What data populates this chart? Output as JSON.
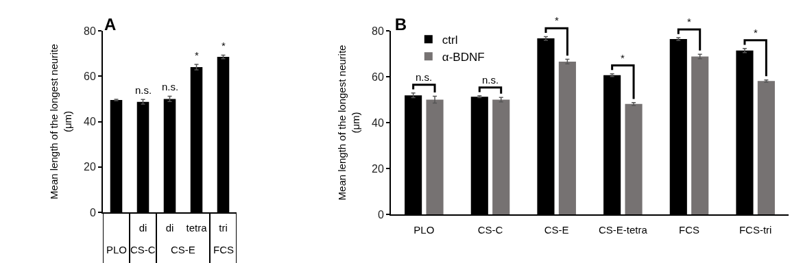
{
  "chart_data": [
    {
      "type": "bar",
      "title": "A",
      "ylabel": "Mean length of the longest neurite\n(μm)",
      "categories": [
        null,
        "di",
        "di",
        "tetra",
        "tri"
      ],
      "values": [
        49.5,
        48.7,
        50,
        64,
        68.5
      ],
      "errors": [
        0.3,
        1,
        1.2,
        1.2,
        0.8
      ],
      "color": "#000000",
      "value_labels": [
        null,
        "n.s.",
        "n.s.",
        "*",
        "*"
      ],
      "annotations": [
        "PLO",
        "CS-C",
        "CS-E",
        "FCS"
      ],
      "ylim": [
        0,
        80
      ],
      "yticks": [
        0,
        20,
        40,
        60,
        80
      ]
    },
    {
      "type": "bar",
      "title": "B",
      "ylabel": "Mean length of the longest neurite\n(μm)",
      "categories": [
        "PLO",
        "CS-C",
        "CS-E",
        "CS-E-tetra",
        "FCS",
        "FCS-tri"
      ],
      "series": [
        {
          "name": "ctrl",
          "color": "#000000",
          "values": [
            51.9,
            51.3,
            76.7,
            60.7,
            76.4,
            71.4
          ],
          "errors": [
            1,
            0.4,
            0.8,
            0.6,
            0.6,
            0.9
          ]
        },
        {
          "name": "α-BDNF",
          "color": "#767272",
          "values": [
            50,
            50,
            66.6,
            48.1,
            68.8,
            58.1
          ],
          "errors": [
            1.5,
            1,
            1,
            0.6,
            1,
            0.5
          ]
        }
      ],
      "legend": "top left",
      "annotations": [
        "n.s.",
        "n.s.",
        "*",
        "*",
        "*",
        "*"
      ],
      "ylim": [
        0,
        80
      ],
      "yticks": [
        0,
        20,
        40,
        60,
        80
      ]
    }
  ]
}
